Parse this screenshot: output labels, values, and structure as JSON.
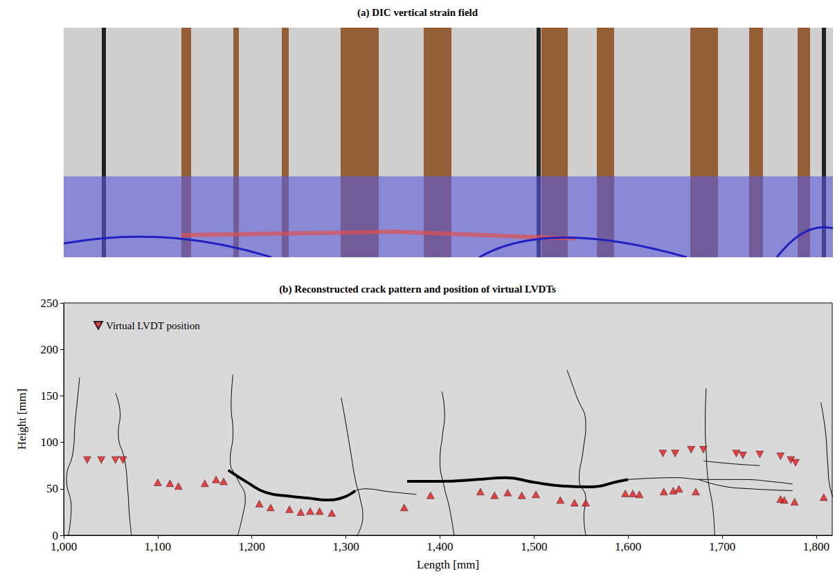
{
  "image_panel": {
    "title": "(a) DIC vertical strain field"
  },
  "chart_data": {
    "type": "scatter",
    "title": "(b) Reconstructed crack pattern and position of virtual LVDTs",
    "xlabel": "Length [mm]",
    "ylabel": "Height [mm]",
    "xlim": [
      1000,
      1817
    ],
    "ylim": [
      0,
      250
    ],
    "xticks": [
      1000,
      1100,
      1200,
      1300,
      1400,
      1500,
      1600,
      1700,
      1800
    ],
    "yticks": [
      0,
      50,
      100,
      150,
      200,
      250
    ],
    "grid": false,
    "legend": "upper left",
    "series": [
      {
        "name": "Virtual LVDT position",
        "type": "scatter",
        "marker": "triangle-down",
        "color": "#e31a1c",
        "x": [
          1025,
          1040,
          1055,
          1063,
          1637,
          1650,
          1667,
          1680,
          1715,
          1722,
          1740,
          1762,
          1773,
          1778
        ],
        "y": [
          81,
          81,
          81,
          81,
          88,
          88,
          92,
          92,
          88,
          86,
          87,
          85,
          81,
          78
        ]
      },
      {
        "type": "scatter",
        "marker": "triangle-up",
        "color": "#e31a1c",
        "x": [
          1100,
          1113,
          1122,
          1150,
          1162,
          1170,
          1208,
          1220,
          1240,
          1252,
          1262,
          1272,
          1285,
          1362,
          1390,
          1443,
          1458,
          1472,
          1487,
          1502,
          1528,
          1543,
          1555,
          1597,
          1605,
          1612,
          1638,
          1648,
          1654,
          1672,
          1762,
          1766,
          1777,
          1808
        ],
        "y": [
          57,
          56,
          53,
          56,
          60,
          58,
          34,
          30,
          28,
          25,
          26,
          26,
          24,
          30,
          43,
          47,
          43,
          46,
          43,
          44,
          38,
          35,
          35,
          45,
          45,
          44,
          47,
          48,
          50,
          47,
          39,
          38,
          36,
          41
        ]
      },
      {
        "type": "line",
        "line_style": "thin",
        "color": "#000000",
        "x": [
          1005,
          1008,
          1003,
          1010,
          1012,
          1015,
          1017
        ],
        "y": [
          0,
          30,
          60,
          90,
          120,
          150,
          170
        ]
      },
      {
        "type": "line",
        "line_style": "thin",
        "color": "#000000",
        "x": [
          1055,
          1060,
          1058,
          1065,
          1068,
          1070,
          1072
        ],
        "y": [
          153,
          130,
          110,
          80,
          50,
          20,
          0
        ]
      },
      {
        "type": "line",
        "line_style": "thin",
        "color": "#000000",
        "x": [
          1180,
          1178,
          1180,
          1177,
          1185,
          1193,
          1190,
          1185
        ],
        "y": [
          173,
          140,
          110,
          80,
          60,
          40,
          20,
          0
        ]
      },
      {
        "type": "line",
        "line_style": "thin",
        "color": "#000000",
        "x": [
          1295,
          1300,
          1305,
          1310,
          1315,
          1318,
          1312
        ],
        "y": [
          148,
          120,
          90,
          60,
          40,
          20,
          0
        ]
      },
      {
        "type": "line",
        "line_style": "thin",
        "color": "#000000",
        "x": [
          1402,
          1405,
          1403,
          1400,
          1405,
          1410,
          1415
        ],
        "y": [
          155,
          130,
          110,
          80,
          50,
          30,
          0
        ]
      },
      {
        "type": "line",
        "line_style": "thin",
        "color": "#000000",
        "x": [
          1535,
          1545,
          1555,
          1552,
          1548,
          1555,
          1553,
          1555
        ],
        "y": [
          178,
          150,
          120,
          90,
          60,
          40,
          20,
          0
        ]
      },
      {
        "type": "line",
        "line_style": "thin",
        "color": "#000000",
        "x": [
          1683,
          1682,
          1683,
          1685,
          1690,
          1692
        ],
        "y": [
          158,
          120,
          90,
          60,
          30,
          0
        ]
      },
      {
        "type": "line",
        "line_style": "thin",
        "color": "#000000",
        "x": [
          1805,
          1810,
          1812,
          1815,
          1825,
          1820
        ],
        "y": [
          143,
          110,
          80,
          50,
          20,
          0
        ]
      },
      {
        "type": "line",
        "line_style": "thick",
        "color": "#000000",
        "x": [
          1175,
          1195,
          1215,
          1240,
          1260,
          1280,
          1295,
          1310
        ],
        "y": [
          70,
          57,
          46,
          42,
          40,
          38,
          40,
          48
        ]
      },
      {
        "type": "line",
        "line_style": "thin",
        "color": "#000000",
        "x": [
          1310,
          1320,
          1345,
          1375
        ],
        "y": [
          48,
          50,
          47,
          44
        ]
      },
      {
        "type": "line",
        "line_style": "thick",
        "color": "#000000",
        "x": [
          1365,
          1400,
          1440,
          1470,
          1500,
          1530,
          1560,
          1590,
          1600
        ],
        "y": [
          58,
          58,
          60,
          62,
          57,
          53,
          52,
          58,
          60
        ]
      },
      {
        "type": "line",
        "line_style": "thin",
        "color": "#000000",
        "x": [
          1600,
          1650,
          1680,
          1720,
          1760,
          1775
        ],
        "y": [
          60,
          62,
          60,
          60,
          57,
          55
        ]
      },
      {
        "type": "line",
        "line_style": "thin",
        "color": "#000000",
        "x": [
          1675,
          1700,
          1730,
          1775
        ],
        "y": [
          60,
          53,
          50,
          48
        ]
      },
      {
        "type": "line",
        "line_style": "thin",
        "color": "#000000",
        "x": [
          1680,
          1710,
          1740
        ],
        "y": [
          80,
          77,
          75
        ]
      }
    ]
  }
}
